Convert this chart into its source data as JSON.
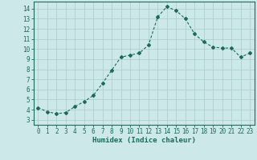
{
  "x": [
    0,
    1,
    2,
    3,
    4,
    5,
    6,
    7,
    8,
    9,
    10,
    11,
    12,
    13,
    14,
    15,
    16,
    17,
    18,
    19,
    20,
    21,
    22,
    23
  ],
  "y": [
    4.2,
    3.8,
    3.6,
    3.7,
    4.3,
    4.8,
    5.4,
    6.6,
    7.9,
    9.2,
    9.4,
    9.6,
    10.4,
    13.2,
    14.2,
    13.8,
    13.0,
    11.5,
    10.7,
    10.2,
    10.1,
    10.1,
    9.2,
    9.6
  ],
  "xlabel": "Humidex (Indice chaleur)",
  "xlim": [
    -0.5,
    23.5
  ],
  "ylim": [
    2.5,
    14.7
  ],
  "yticks": [
    3,
    4,
    5,
    6,
    7,
    8,
    9,
    10,
    11,
    12,
    13,
    14
  ],
  "xticks": [
    0,
    1,
    2,
    3,
    4,
    5,
    6,
    7,
    8,
    9,
    10,
    11,
    12,
    13,
    14,
    15,
    16,
    17,
    18,
    19,
    20,
    21,
    22,
    23
  ],
  "xtick_labels": [
    "0",
    "1",
    "2",
    "3",
    "4",
    "5",
    "6",
    "7",
    "8",
    "9",
    "10",
    "11",
    "12",
    "13",
    "14",
    "15",
    "16",
    "17",
    "18",
    "19",
    "20",
    "21",
    "22",
    "23"
  ],
  "line_color": "#1a6b5a",
  "marker": "D",
  "marker_size": 2.0,
  "bg_color": "#cce8e8",
  "grid_color": "#aacccc",
  "label_fontsize": 6.5,
  "tick_fontsize": 5.5
}
